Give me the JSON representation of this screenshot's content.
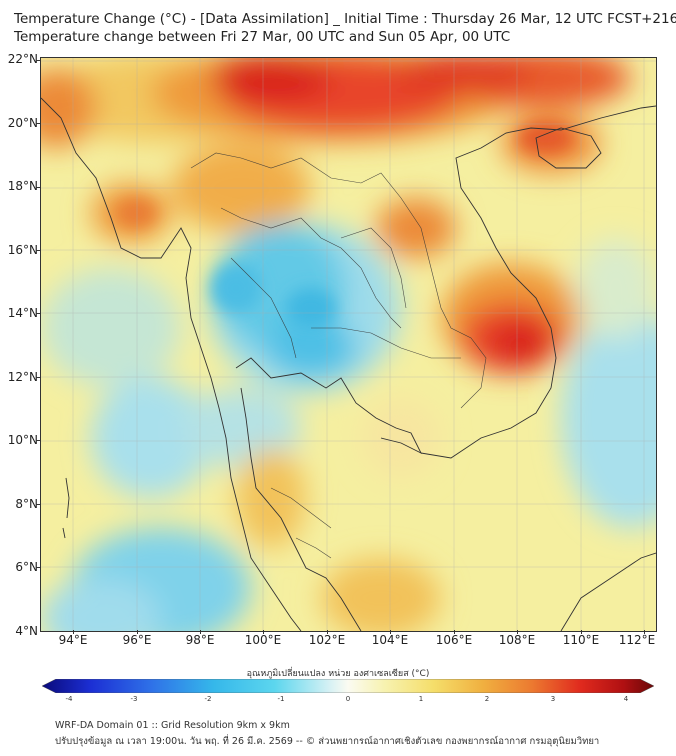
{
  "header": {
    "title_line1": "Temperature Change (°C) - [Data Assimilation] _ Initial Time : Thursday 26 Mar, 12 UTC FCST+216",
    "title_line2": "Temperature change between Fri 27 Mar, 00 UTC and Sun 05 Apr, 00 UTC"
  },
  "map": {
    "lat_labels": [
      "22°N",
      "20°N",
      "18°N",
      "16°N",
      "14°N",
      "12°N",
      "10°N",
      "8°N",
      "6°N",
      "4°N"
    ],
    "lon_labels": [
      "94°E",
      "96°E",
      "98°E",
      "100°E",
      "102°E",
      "104°E",
      "106°E",
      "108°E",
      "110°E",
      "112°E"
    ],
    "lat_range": [
      4,
      22
    ],
    "lon_range": [
      93.1,
      112.5
    ]
  },
  "colorbar": {
    "label": "อุณหภูมิเปลี่ยนแปลง หน่วย องศาเซลเซียส (°C)",
    "ticks": [
      "-4",
      "-3",
      "-2",
      "-1",
      "0",
      "1",
      "2",
      "3",
      "4"
    ],
    "range": [
      -4,
      4
    ]
  },
  "footer": {
    "line1": "WRF-DA Domain 01 :: Grid Resolution 9km x 9km",
    "line2": "ปรับปรุงข้อมูล ณ เวลา 19:00น. วัน พฤ. ที่ 26 มี.ค. 2569 -- © ส่วนพยากรณ์อากาศเชิงตัวเลข กองพยากรณ์อากาศ กรมอุตุนิยมวิทยา"
  }
}
